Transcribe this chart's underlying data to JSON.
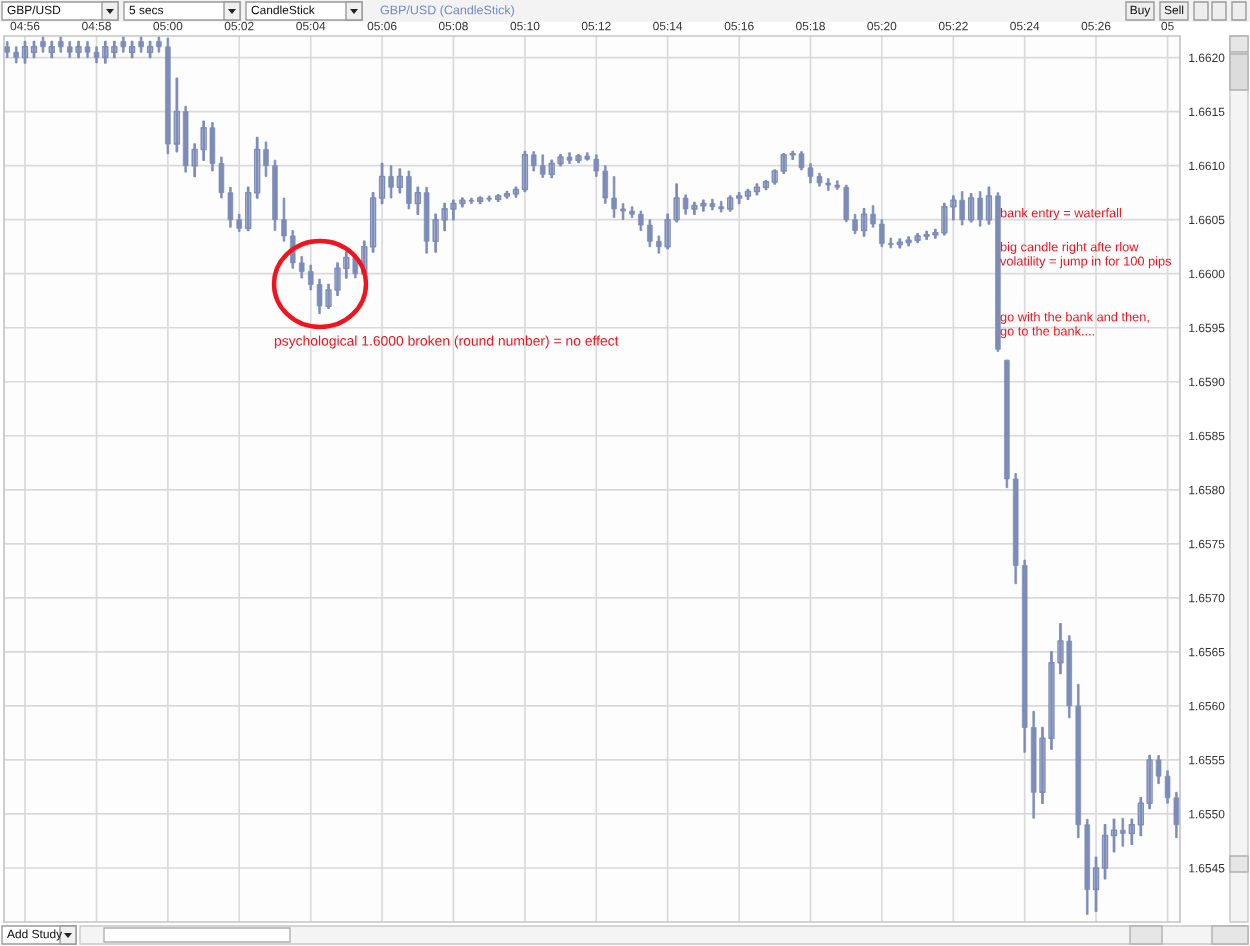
{
  "chart_data": {
    "type": "candlestick",
    "title": "GBP/USD (CandleStick)",
    "color": "#7d8db8",
    "x": [
      4.925,
      4.9292,
      4.9333,
      4.9375,
      4.9417,
      4.9458,
      4.95,
      4.9542,
      4.9583,
      4.9625,
      4.9667,
      4.9708,
      4.975,
      4.9792,
      4.9833,
      4.9875,
      4.9917,
      4.9958,
      5.0,
      5.0042,
      5.0083,
      5.0125,
      5.0167,
      5.0208,
      5.025,
      5.0292,
      5.0333,
      5.0375,
      5.0417,
      5.0458,
      5.05,
      5.0542,
      5.0583,
      5.0625,
      5.0667,
      5.0708,
      5.075,
      5.0792,
      5.0833,
      5.0875,
      5.0917,
      5.0958,
      5.1,
      5.1042,
      5.1083,
      5.1125,
      5.1167,
      5.1208,
      5.125,
      5.1292,
      5.1333,
      5.1375,
      5.1417,
      5.1458,
      5.15,
      5.1542,
      5.1583,
      5.1625,
      5.1667,
      5.1708,
      5.175,
      5.1792,
      5.1833,
      5.1875,
      5.1917,
      5.1958,
      5.2,
      5.2042,
      5.2083,
      5.2125,
      5.2167,
      5.2208,
      5.225,
      5.2292,
      5.2333,
      5.2375,
      5.2417,
      5.2458,
      5.25,
      5.2542,
      5.2583,
      5.2625,
      5.2667,
      5.2708,
      5.275,
      5.2792,
      5.2833,
      5.2875,
      5.2917,
      5.2958,
      5.3,
      5.3042,
      5.3083,
      5.3125,
      5.3167,
      5.3208,
      5.325,
      5.3292,
      5.3333,
      5.3375,
      5.3417,
      5.3458,
      5.35,
      5.3542,
      5.3583,
      5.3625,
      5.3667,
      5.3708,
      5.375,
      5.3792,
      5.3833,
      5.3875,
      5.3917,
      5.3958,
      5.4,
      5.4042,
      5.4083,
      5.4125,
      5.4167,
      5.4208,
      5.425,
      5.4292,
      5.4333,
      5.4375,
      5.4417,
      5.4458,
      5.45,
      5.4542,
      5.4583,
      5.4625,
      5.4667,
      5.4708
    ],
    "ohlc": [
      [
        1.6621,
        1.66215,
        1.662,
        1.66205
      ],
      [
        1.66205,
        1.6621,
        1.66195,
        1.662
      ],
      [
        1.662,
        1.66215,
        1.66195,
        1.6621
      ],
      [
        1.66205,
        1.66215,
        1.662,
        1.6621
      ],
      [
        1.66215,
        1.66219,
        1.66205,
        1.6621
      ],
      [
        1.66205,
        1.66215,
        1.662,
        1.6621
      ],
      [
        1.66215,
        1.66219,
        1.66205,
        1.6621
      ],
      [
        1.6621,
        1.66215,
        1.662,
        1.66205
      ],
      [
        1.66205,
        1.66215,
        1.662,
        1.6621
      ],
      [
        1.6621,
        1.66215,
        1.662,
        1.66205
      ],
      [
        1.66205,
        1.6621,
        1.66195,
        1.662
      ],
      [
        1.662,
        1.66215,
        1.66195,
        1.6621
      ],
      [
        1.66205,
        1.66215,
        1.662,
        1.6621
      ],
      [
        1.66215,
        1.66219,
        1.66205,
        1.6621
      ],
      [
        1.66205,
        1.66215,
        1.662,
        1.6621
      ],
      [
        1.66215,
        1.66219,
        1.66205,
        1.6621
      ],
      [
        1.66205,
        1.66215,
        1.662,
        1.6621
      ],
      [
        1.66215,
        1.66219,
        1.66205,
        1.6621
      ],
      [
        1.6621,
        1.66218,
        1.66111,
        1.6612
      ],
      [
        1.6612,
        1.66181,
        1.66113,
        1.6615
      ],
      [
        1.6615,
        1.66155,
        1.66094,
        1.661
      ],
      [
        1.661,
        1.6612,
        1.6609,
        1.66115
      ],
      [
        1.66115,
        1.66141,
        1.66105,
        1.66135
      ],
      [
        1.66135,
        1.6614,
        1.66095,
        1.66102
      ],
      [
        1.66102,
        1.66108,
        1.6607,
        1.66075
      ],
      [
        1.66075,
        1.6608,
        1.66043,
        1.6605
      ],
      [
        1.6605,
        1.66055,
        1.66039,
        1.66042
      ],
      [
        1.66042,
        1.6608,
        1.6604,
        1.66075
      ],
      [
        1.66075,
        1.66126,
        1.6607,
        1.66115
      ],
      [
        1.66115,
        1.66122,
        1.6609,
        1.661
      ],
      [
        1.661,
        1.66105,
        1.6604,
        1.6605
      ],
      [
        1.6605,
        1.6607,
        1.6603,
        1.66035
      ],
      [
        1.66035,
        1.6604,
        1.66005,
        1.6601
      ],
      [
        1.6601,
        1.66016,
        1.65996,
        1.66002
      ],
      [
        1.66002,
        1.66008,
        1.65985,
        1.6599
      ],
      [
        1.6599,
        1.65995,
        1.65963,
        1.6597
      ],
      [
        1.6597,
        1.6599,
        1.65968,
        1.65985
      ],
      [
        1.65985,
        1.6601,
        1.6598,
        1.66005
      ],
      [
        1.66005,
        1.6602,
        1.65996,
        1.66015
      ],
      [
        1.66015,
        1.66018,
        1.65996,
        1.66
      ],
      [
        1.66,
        1.6603,
        1.65998,
        1.66025
      ],
      [
        1.66025,
        1.66075,
        1.6602,
        1.6607
      ],
      [
        1.6607,
        1.66102,
        1.66065,
        1.6609
      ],
      [
        1.6609,
        1.661,
        1.6607,
        1.6608
      ],
      [
        1.6608,
        1.66097,
        1.66075,
        1.6609
      ],
      [
        1.6609,
        1.66095,
        1.6606,
        1.66065
      ],
      [
        1.66065,
        1.6608,
        1.66055,
        1.66075
      ],
      [
        1.66075,
        1.6608,
        1.66019,
        1.6603
      ],
      [
        1.6603,
        1.66055,
        1.6602,
        1.6605
      ],
      [
        1.6605,
        1.66065,
        1.6604,
        1.6606
      ],
      [
        1.6606,
        1.66068,
        1.6605,
        1.66065
      ],
      [
        1.66065,
        1.6607,
        1.66062,
        1.66068
      ],
      [
        1.66068,
        1.6607,
        1.66065,
        1.66067
      ],
      [
        1.66067,
        1.66071,
        1.66065,
        1.6607
      ],
      [
        1.6607,
        1.66072,
        1.66067,
        1.66069
      ],
      [
        1.66069,
        1.66073,
        1.66067,
        1.66072
      ],
      [
        1.66072,
        1.66076,
        1.6607,
        1.66074
      ],
      [
        1.66074,
        1.6608,
        1.66071,
        1.66078
      ],
      [
        1.66078,
        1.66113,
        1.66076,
        1.6611
      ],
      [
        1.6611,
        1.66113,
        1.66095,
        1.661
      ],
      [
        1.661,
        1.6611,
        1.66089,
        1.66092
      ],
      [
        1.66092,
        1.66105,
        1.66089,
        1.66102
      ],
      [
        1.66102,
        1.6611,
        1.661,
        1.66108
      ],
      [
        1.66108,
        1.66112,
        1.66102,
        1.66105
      ],
      [
        1.66105,
        1.6611,
        1.66103,
        1.66109
      ],
      [
        1.66109,
        1.66112,
        1.66105,
        1.66106
      ],
      [
        1.66106,
        1.6611,
        1.6609,
        1.66095
      ],
      [
        1.66095,
        1.661,
        1.66065,
        1.6607
      ],
      [
        1.6607,
        1.6609,
        1.66052,
        1.6606
      ],
      [
        1.6606,
        1.66065,
        1.6605,
        1.66058
      ],
      [
        1.66058,
        1.66062,
        1.66052,
        1.66055
      ],
      [
        1.66055,
        1.66058,
        1.6604,
        1.66045
      ],
      [
        1.66045,
        1.6605,
        1.66025,
        1.6603
      ],
      [
        1.6603,
        1.66035,
        1.66019,
        1.66025
      ],
      [
        1.66025,
        1.66055,
        1.66023,
        1.6605
      ],
      [
        1.6605,
        1.66083,
        1.66048,
        1.6607
      ],
      [
        1.6607,
        1.66073,
        1.66055,
        1.6606
      ],
      [
        1.6606,
        1.66066,
        1.66055,
        1.66063
      ],
      [
        1.66063,
        1.66068,
        1.66058,
        1.66065
      ],
      [
        1.66065,
        1.66069,
        1.66059,
        1.66062
      ],
      [
        1.66062,
        1.66067,
        1.66057,
        1.6606
      ],
      [
        1.6606,
        1.66072,
        1.66058,
        1.6607
      ],
      [
        1.6607,
        1.66075,
        1.66065,
        1.66072
      ],
      [
        1.66072,
        1.66078,
        1.66069,
        1.66076
      ],
      [
        1.66076,
        1.66083,
        1.66073,
        1.6608
      ],
      [
        1.6608,
        1.66086,
        1.66078,
        1.66085
      ],
      [
        1.66085,
        1.66096,
        1.66083,
        1.66095
      ],
      [
        1.66095,
        1.66111,
        1.66093,
        1.6611
      ],
      [
        1.6611,
        1.66113,
        1.66106,
        1.66111
      ],
      [
        1.66111,
        1.66113,
        1.66096,
        1.66098
      ],
      [
        1.66098,
        1.66102,
        1.66084,
        1.6609
      ],
      [
        1.6609,
        1.66093,
        1.66081,
        1.66084
      ],
      [
        1.66084,
        1.66088,
        1.66077,
        1.66082
      ],
      [
        1.66082,
        1.66086,
        1.66078,
        1.6608
      ],
      [
        1.6608,
        1.66082,
        1.66048,
        1.6605
      ],
      [
        1.6605,
        1.66055,
        1.66037,
        1.6604
      ],
      [
        1.6604,
        1.6606,
        1.66035,
        1.66055
      ],
      [
        1.66055,
        1.66063,
        1.66043,
        1.66046
      ],
      [
        1.66046,
        1.6605,
        1.66025,
        1.66028
      ],
      [
        1.66028,
        1.66033,
        1.66024,
        1.66027
      ],
      [
        1.66027,
        1.66032,
        1.66024,
        1.66029
      ],
      [
        1.66029,
        1.66034,
        1.66026,
        1.66031
      ],
      [
        1.66031,
        1.66037,
        1.66029,
        1.66035
      ],
      [
        1.66035,
        1.66039,
        1.66032,
        1.66036
      ],
      [
        1.66036,
        1.66041,
        1.66033,
        1.66038
      ],
      [
        1.66038,
        1.66065,
        1.66036,
        1.66062
      ],
      [
        1.66062,
        1.66072,
        1.6605,
        1.66068
      ],
      [
        1.66068,
        1.66076,
        1.66045,
        1.6605
      ],
      [
        1.6605,
        1.66074,
        1.66048,
        1.6607
      ],
      [
        1.6607,
        1.66076,
        1.66044,
        1.6605
      ],
      [
        1.6605,
        1.6608,
        1.66046,
        1.66072
      ],
      [
        1.66072,
        1.66075,
        1.65928,
        1.6593
      ],
      [
        1.6592,
        1.6592,
        1.65802,
        1.6581
      ],
      [
        1.6581,
        1.65815,
        1.65713,
        1.6573
      ],
      [
        1.6573,
        1.65735,
        1.65557,
        1.6558
      ],
      [
        1.6558,
        1.65595,
        1.65496,
        1.6552
      ],
      [
        1.6552,
        1.6558,
        1.6551,
        1.6557
      ],
      [
        1.6557,
        1.6565,
        1.6556,
        1.6564
      ],
      [
        1.6564,
        1.65676,
        1.6563,
        1.6566
      ],
      [
        1.6566,
        1.65665,
        1.65589,
        1.656
      ],
      [
        1.656,
        1.6562,
        1.65478,
        1.6549
      ],
      [
        1.6549,
        1.65495,
        1.65407,
        1.6543
      ],
      [
        1.6543,
        1.6546,
        1.6541,
        1.6545
      ],
      [
        1.6545,
        1.6549,
        1.6544,
        1.6548
      ],
      [
        1.6548,
        1.65495,
        1.65465,
        1.65485
      ],
      [
        1.65485,
        1.65496,
        1.6547,
        1.65482
      ],
      [
        1.65482,
        1.65495,
        1.65472,
        1.6549
      ],
      [
        1.6549,
        1.65515,
        1.6548,
        1.6551
      ],
      [
        1.6551,
        1.65554,
        1.65505,
        1.6555
      ],
      [
        1.6555,
        1.65554,
        1.65528,
        1.65535
      ],
      [
        1.65535,
        1.6554,
        1.6551,
        1.65515
      ],
      [
        1.65515,
        1.6552,
        1.65478,
        1.6549
      ]
    ],
    "xlim": [
      4.9235,
      5.4725
    ],
    "ylim": [
      1.654,
      1.6622
    ],
    "xticks": [
      {
        "value": 4.9333,
        "label": "04:56"
      },
      {
        "value": 4.9667,
        "label": "04:58"
      },
      {
        "value": 5.0,
        "label": "05:00"
      },
      {
        "value": 5.0333,
        "label": "05:02"
      },
      {
        "value": 5.0667,
        "label": "05:04"
      },
      {
        "value": 5.1,
        "label": "05:06"
      },
      {
        "value": 5.1333,
        "label": "05:08"
      },
      {
        "value": 5.1667,
        "label": "05:10"
      },
      {
        "value": 5.2,
        "label": "05:12"
      },
      {
        "value": 5.2333,
        "label": "05:14"
      },
      {
        "value": 5.2667,
        "label": "05:16"
      },
      {
        "value": 5.3,
        "label": "05:18"
      },
      {
        "value": 5.3333,
        "label": "05:20"
      },
      {
        "value": 5.3667,
        "label": "05:22"
      },
      {
        "value": 5.4,
        "label": "05:24"
      },
      {
        "value": 5.4333,
        "label": "05:26"
      },
      {
        "value": 5.4667,
        "label": "05"
      }
    ],
    "yticks": [
      1.6545,
      {
        "value": 1.655,
        "label": "1.6550"
      },
      1.6555,
      {
        "value": 1.656,
        "label": "1.6560"
      },
      1.6565,
      {
        "value": 1.657,
        "label": "1.6570"
      },
      1.6575,
      {
        "value": 1.658,
        "label": "1.6580"
      },
      1.6585,
      {
        "value": 1.659,
        "label": "1.6590"
      },
      1.6595,
      {
        "value": 1.66,
        "label": "1.6600"
      },
      1.6605,
      {
        "value": 1.661,
        "label": "1.6610"
      },
      1.6615,
      {
        "value": 1.662,
        "label": "1.6620"
      }
    ],
    "grid": true,
    "annotations": [
      "psychological 1.6000 broken (round number) = no effect",
      "bank entry = waterfall",
      "big candle right afte rlow\nvolatility = jump in for 100 pips",
      "go with the bank and then,\ngo to the bank....",
      "GBP/USD",
      "5 secs",
      "CandleStick",
      "Buy",
      "Sell",
      "Add Study"
    ]
  }
}
